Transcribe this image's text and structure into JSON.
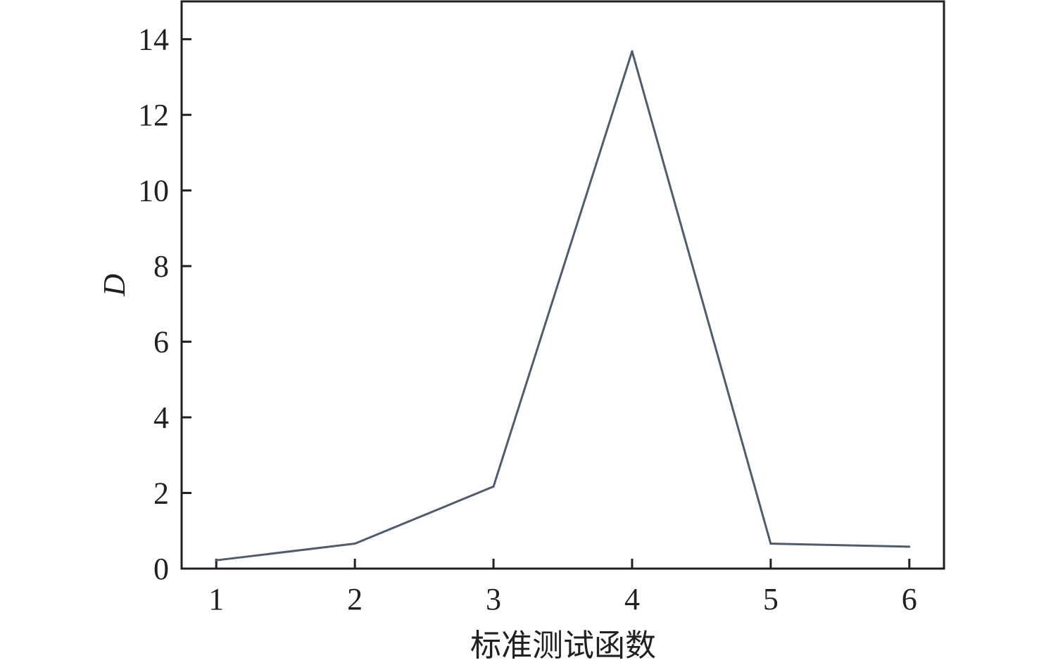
{
  "chart_data": {
    "type": "line",
    "title": "",
    "xlabel": "标准测试函数",
    "ylabel": "D",
    "x": [
      1,
      2,
      3,
      4,
      5,
      6
    ],
    "series": [
      {
        "values": [
          0.22,
          0.66,
          2.17,
          13.68,
          0.66,
          0.58
        ],
        "color": "#4f5b6e"
      }
    ],
    "xlim": [
      0.75,
      6.25
    ],
    "ylim": [
      0,
      15
    ],
    "xticks": [
      "1",
      "2",
      "3",
      "4",
      "5",
      "6"
    ],
    "yticks": [
      "0",
      "2",
      "4",
      "6",
      "8",
      "10",
      "12",
      "14"
    ],
    "grid": false,
    "legend": "none"
  }
}
